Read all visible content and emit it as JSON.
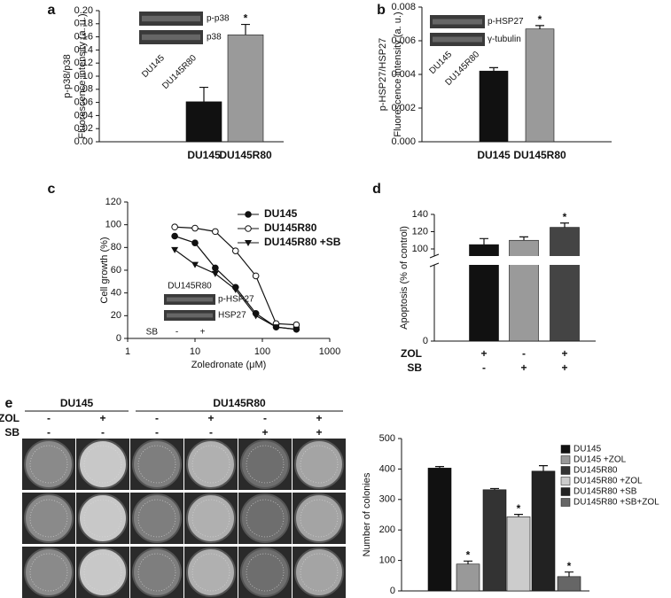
{
  "chart_data": [
    {
      "type": "bar",
      "panel": "a",
      "ylabel": [
        "p-p38/p38",
        "Fluorescence intensity (a. u.)"
      ],
      "categories": [
        "DU145",
        "DU145R80"
      ],
      "values": [
        0.061,
        0.163
      ],
      "errors": [
        0.022,
        0.016
      ],
      "colors": [
        "#111111",
        "#9a9a9a"
      ],
      "significance": [
        null,
        "*"
      ],
      "ylim": [
        0,
        0.2
      ],
      "yticks": [
        {
          "value": 0,
          "label": "0.00"
        },
        0.02,
        0.04,
        0.06,
        0.08,
        {
          "value": 0.1,
          "label": "0.10"
        },
        0.12,
        0.14,
        0.16,
        0.18,
        {
          "value": 0.2,
          "label": "0.20"
        }
      ],
      "blot": {
        "rows": [
          "p-p38",
          "p38"
        ],
        "lanes": [
          "DU145",
          "DU145R80"
        ]
      }
    },
    {
      "type": "bar",
      "panel": "b",
      "ylabel": [
        "p-HSP27/HSP27",
        "Fluorescence intensity (a. u.)"
      ],
      "categories": [
        "DU145",
        "DU145R80"
      ],
      "values": [
        0.0042,
        0.0067
      ],
      "errors": [
        0.0002,
        0.0002
      ],
      "colors": [
        "#111111",
        "#9a9a9a"
      ],
      "significance": [
        null,
        "*"
      ],
      "ylim": [
        0,
        0.008
      ],
      "yticks": [
        {
          "value": 0,
          "label": "0.000"
        },
        0.002,
        0.004,
        0.006,
        0.008
      ],
      "blot": {
        "rows": [
          "p-HSP27",
          "γ-tubulin"
        ],
        "lanes": [
          "DU145",
          "DU145R80"
        ]
      }
    },
    {
      "type": "line",
      "panel": "c",
      "ylabel": [
        "Cell growth (%)"
      ],
      "xlabel": "Zoledronate (μM)",
      "log_x": true,
      "xlim": [
        1,
        1000
      ],
      "xticks": [
        1,
        10,
        100,
        1000
      ],
      "ylim": [
        0,
        120
      ],
      "yticks": [
        0,
        20,
        40,
        60,
        80,
        100,
        120
      ],
      "x": [
        5,
        10,
        20,
        40,
        80,
        160,
        320
      ],
      "series": [
        {
          "name": "DU145",
          "color": "#111111",
          "marker": "filled-circle",
          "values": [
            90,
            84,
            62,
            45,
            22,
            10,
            8
          ]
        },
        {
          "name": "DU145R80",
          "color": "#111111",
          "marker": "open-circle",
          "values": [
            98,
            97,
            94,
            77,
            55,
            13,
            12
          ]
        },
        {
          "name": "DU145R80 +SB",
          "color": "#111111",
          "marker": "triangle",
          "values": [
            78,
            65,
            57,
            43,
            20,
            10,
            8
          ]
        }
      ],
      "blot": {
        "title": "DU145R80",
        "rows": [
          "p-HSP27",
          "HSP27"
        ],
        "treatment": {
          "name": "SB",
          "signs": [
            "-",
            "+"
          ]
        }
      }
    },
    {
      "type": "bar",
      "panel": "d",
      "ylabel": [
        "Apoptosis (% of control)"
      ],
      "axis_break": true,
      "values": [
        105,
        110,
        125
      ],
      "errors": [
        7,
        4,
        5
      ],
      "colors": [
        "#111111",
        "#9a9a9a",
        "#444444"
      ],
      "significance": [
        null,
        null,
        "*"
      ],
      "ylim": [
        0,
        140
      ],
      "yticks": [
        0,
        100,
        120,
        140
      ],
      "treatments": [
        {
          "name": "ZOL",
          "signs": [
            "+",
            "-",
            "+"
          ]
        },
        {
          "name": "SB",
          "signs": [
            "-",
            "+",
            "+"
          ]
        }
      ]
    },
    {
      "type": "bar",
      "ylabel": [
        "Number of colonies"
      ],
      "ylim": [
        0,
        500
      ],
      "yticks": [
        0,
        100,
        200,
        300,
        400,
        500
      ],
      "series": [
        {
          "name": "DU145",
          "color": "#111111",
          "values": [
            403
          ],
          "errors": [
            5
          ],
          "significance": [
            null
          ]
        },
        {
          "name": "DU145 +ZOL",
          "color": "#999999",
          "values": [
            88
          ],
          "errors": [
            10
          ],
          "significance": [
            "*"
          ]
        },
        {
          "name": "DU145R80",
          "color": "#333333",
          "values": [
            332
          ],
          "errors": [
            4
          ],
          "significance": [
            null
          ]
        },
        {
          "name": "DU145R80 +ZOL",
          "color": "#cccccc",
          "values": [
            243
          ],
          "errors": [
            8
          ],
          "significance": [
            "*"
          ]
        },
        {
          "name": "DU145R80 +SB",
          "color": "#222222",
          "values": [
            393
          ],
          "errors": [
            18
          ],
          "significance": [
            null
          ]
        },
        {
          "name": "DU145R80 +SB+ZOL",
          "color": "#666666",
          "values": [
            47
          ],
          "errors": [
            15
          ],
          "significance": [
            "*"
          ]
        }
      ]
    }
  ],
  "colony_image": {
    "panel": "e",
    "groups": [
      "DU145",
      "DU145R80"
    ],
    "treatments": [
      {
        "name": "ZOL",
        "signs": [
          "-",
          "+",
          "-",
          "+",
          "-",
          "+"
        ]
      },
      {
        "name": "SB",
        "signs": [
          "-",
          "-",
          "-",
          "-",
          "+",
          "+"
        ]
      }
    ]
  }
}
